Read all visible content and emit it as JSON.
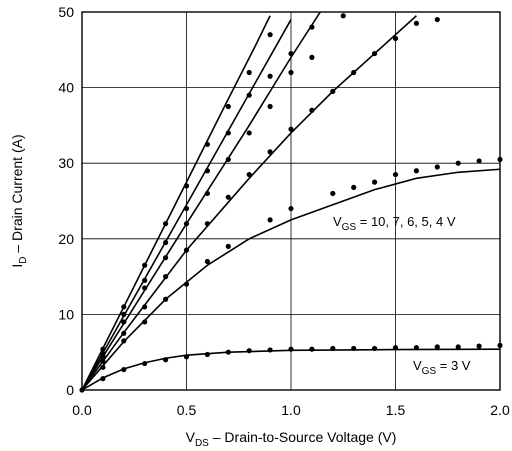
{
  "chart_data": {
    "type": "line",
    "title": "",
    "xlabel": {
      "main": "V",
      "sub": "DS",
      "rest": " – Drain-to-Source Voltage (V)"
    },
    "ylabel": {
      "main": "I",
      "sub": "D",
      "rest": " – Drain Current (A)"
    },
    "xlim": [
      0.0,
      2.0
    ],
    "ylim": [
      0,
      50
    ],
    "x_ticks": [
      0.0,
      0.5,
      1.0,
      1.5,
      2.0
    ],
    "x_tick_labels": [
      "0.0",
      "0.5",
      "1.0",
      "1.5",
      "2.0"
    ],
    "y_ticks": [
      0,
      10,
      20,
      30,
      40,
      50
    ],
    "y_tick_labels": [
      "0",
      "10",
      "20",
      "30",
      "40",
      "50"
    ],
    "grid": true,
    "annotations": [
      {
        "main": "V",
        "sub": "GS",
        "rest": " = 10, 7, 6, 5, 4 V"
      },
      {
        "main": "V",
        "sub": "GS",
        "rest": " = 3 V"
      }
    ],
    "series": [
      {
        "vgs": "10",
        "curve": [
          [
            0,
            0
          ],
          [
            0.1,
            5.5
          ],
          [
            0.3,
            16.5
          ],
          [
            0.5,
            27.5
          ],
          [
            0.7,
            38.5
          ],
          [
            0.82,
            45
          ],
          [
            0.9,
            49.5
          ]
        ],
        "points": [
          [
            0.1,
            5.4
          ],
          [
            0.2,
            11
          ],
          [
            0.3,
            16.5
          ],
          [
            0.4,
            22
          ],
          [
            0.5,
            27
          ],
          [
            0.6,
            32.5
          ],
          [
            0.7,
            37.5
          ],
          [
            0.8,
            42
          ],
          [
            0.9,
            47
          ]
        ]
      },
      {
        "vgs": "7",
        "curve": [
          [
            0,
            0
          ],
          [
            0.2,
            9.8
          ],
          [
            0.5,
            24.5
          ],
          [
            0.8,
            39.2
          ],
          [
            1.0,
            49
          ]
        ],
        "points": [
          [
            0.1,
            4.8
          ],
          [
            0.2,
            10
          ],
          [
            0.3,
            14.5
          ],
          [
            0.4,
            19.5
          ],
          [
            0.5,
            24
          ],
          [
            0.6,
            29
          ],
          [
            0.7,
            34
          ],
          [
            0.8,
            39
          ],
          [
            0.9,
            41.5
          ],
          [
            1.0,
            44.5
          ],
          [
            1.1,
            48
          ]
        ]
      },
      {
        "vgs": "6",
        "curve": [
          [
            0,
            0
          ],
          [
            0.2,
            8.8
          ],
          [
            0.5,
            22
          ],
          [
            0.8,
            35
          ],
          [
            1.0,
            44
          ],
          [
            1.14,
            50
          ]
        ],
        "points": [
          [
            0.1,
            4.5
          ],
          [
            0.2,
            9
          ],
          [
            0.3,
            13.5
          ],
          [
            0.4,
            17.5
          ],
          [
            0.5,
            22
          ],
          [
            0.6,
            26
          ],
          [
            0.7,
            30.5
          ],
          [
            0.8,
            34
          ],
          [
            0.9,
            37.5
          ],
          [
            1.0,
            42
          ],
          [
            1.1,
            44
          ],
          [
            1.25,
            49.5
          ]
        ]
      },
      {
        "vgs": "5",
        "curve": [
          [
            0,
            0
          ],
          [
            0.2,
            7.6
          ],
          [
            0.5,
            18.5
          ],
          [
            0.8,
            28
          ],
          [
            1.0,
            34
          ],
          [
            1.2,
            39.5
          ],
          [
            1.4,
            44.5
          ],
          [
            1.6,
            49.5
          ]
        ],
        "points": [
          [
            0.1,
            3.8
          ],
          [
            0.2,
            7.5
          ],
          [
            0.3,
            11
          ],
          [
            0.4,
            15
          ],
          [
            0.5,
            18.5
          ],
          [
            0.6,
            22
          ],
          [
            0.7,
            25.5
          ],
          [
            0.8,
            28.5
          ],
          [
            0.9,
            31.5
          ],
          [
            1.0,
            34.5
          ],
          [
            1.1,
            37
          ],
          [
            1.2,
            39.5
          ],
          [
            1.3,
            42
          ],
          [
            1.4,
            44.5
          ],
          [
            1.5,
            46.5
          ],
          [
            1.6,
            48.5
          ],
          [
            1.7,
            49
          ]
        ]
      },
      {
        "vgs": "4",
        "curve": [
          [
            0,
            0
          ],
          [
            0.1,
            3.2
          ],
          [
            0.2,
            6.4
          ],
          [
            0.4,
            12
          ],
          [
            0.6,
            16.5
          ],
          [
            0.8,
            20
          ],
          [
            1.0,
            22.5
          ],
          [
            1.2,
            24.5
          ],
          [
            1.4,
            26.5
          ],
          [
            1.6,
            28
          ],
          [
            1.8,
            28.8
          ],
          [
            2.0,
            29.2
          ]
        ],
        "points": [
          [
            0.1,
            3
          ],
          [
            0.2,
            6.5
          ],
          [
            0.3,
            9
          ],
          [
            0.4,
            12
          ],
          [
            0.5,
            14
          ],
          [
            0.6,
            17
          ],
          [
            0.7,
            19
          ],
          [
            0.9,
            22.5
          ],
          [
            1.0,
            24
          ],
          [
            1.2,
            26
          ],
          [
            1.3,
            26.8
          ],
          [
            1.4,
            27.5
          ],
          [
            1.5,
            28.5
          ],
          [
            1.6,
            29
          ],
          [
            1.7,
            29.5
          ],
          [
            1.8,
            30
          ],
          [
            1.9,
            30.3
          ],
          [
            2.0,
            30.5
          ]
        ]
      },
      {
        "vgs": "3",
        "curve": [
          [
            0,
            0
          ],
          [
            0.1,
            1.6
          ],
          [
            0.2,
            2.8
          ],
          [
            0.3,
            3.6
          ],
          [
            0.4,
            4.2
          ],
          [
            0.5,
            4.6
          ],
          [
            0.7,
            5.0
          ],
          [
            1.0,
            5.25
          ],
          [
            1.5,
            5.35
          ],
          [
            2.0,
            5.4
          ]
        ],
        "points": [
          [
            0.1,
            1.5
          ],
          [
            0.2,
            2.7
          ],
          [
            0.3,
            3.5
          ],
          [
            0.4,
            4.0
          ],
          [
            0.5,
            4.4
          ],
          [
            0.6,
            4.7
          ],
          [
            0.7,
            5.0
          ],
          [
            0.8,
            5.2
          ],
          [
            0.9,
            5.3
          ],
          [
            1.0,
            5.4
          ],
          [
            1.1,
            5.4
          ],
          [
            1.2,
            5.5
          ],
          [
            1.3,
            5.5
          ],
          [
            1.4,
            5.5
          ],
          [
            1.5,
            5.6
          ],
          [
            1.6,
            5.6
          ],
          [
            1.7,
            5.7
          ],
          [
            1.8,
            5.7
          ],
          [
            1.9,
            5.8
          ],
          [
            2.0,
            5.9
          ]
        ]
      }
    ]
  }
}
